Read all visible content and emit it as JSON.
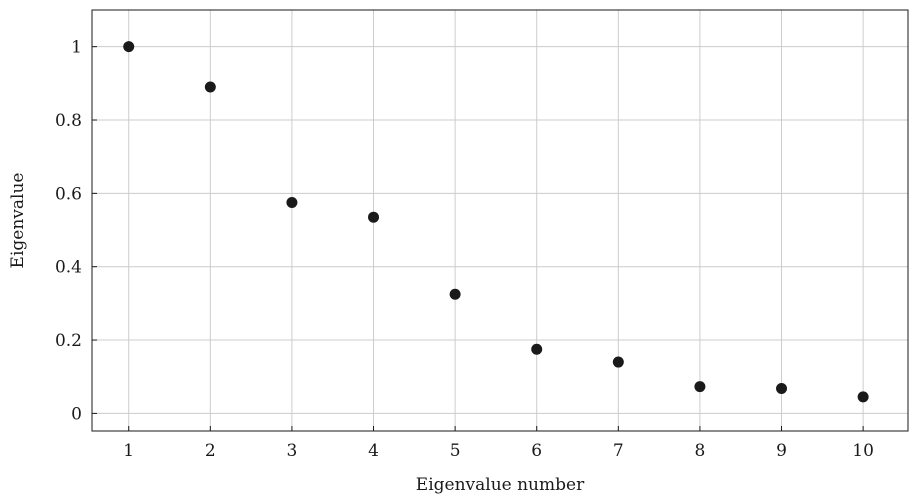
{
  "chart_data": {
    "type": "scatter",
    "title": "",
    "xlabel": "Eigenvalue number",
    "ylabel": "Eigenvalue",
    "x": [
      1,
      2,
      3,
      4,
      5,
      6,
      7,
      8,
      9,
      10
    ],
    "y": [
      1.0,
      0.89,
      0.575,
      0.535,
      0.325,
      0.175,
      0.14,
      0.073,
      0.068,
      0.045
    ],
    "xlim": [
      0.55,
      10.55
    ],
    "ylim": [
      -0.048,
      1.1
    ],
    "xticks": [
      1,
      2,
      3,
      4,
      5,
      6,
      7,
      8,
      9,
      10
    ],
    "xtick_labels": [
      "1",
      "2",
      "3",
      "4",
      "5",
      "6",
      "7",
      "8",
      "9",
      "10"
    ],
    "yticks": [
      0,
      0.2,
      0.4,
      0.6,
      0.8,
      1
    ],
    "ytick_labels": [
      "0",
      "0.2",
      "0.4",
      "0.6",
      "0.8",
      "1"
    ],
    "grid": true,
    "legend": false,
    "colors": {
      "marker": "#1a1a1a",
      "grid": "#cccccc",
      "axis": "#1a1a1a"
    }
  }
}
